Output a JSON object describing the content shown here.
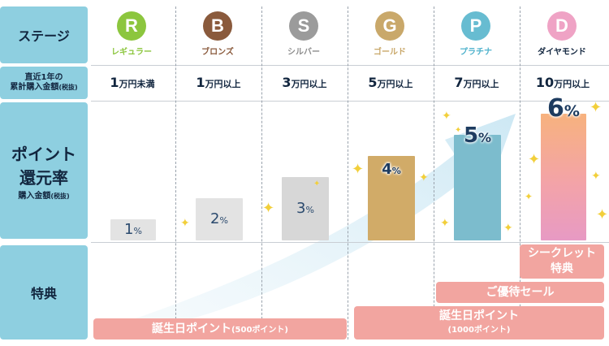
{
  "headers": {
    "stage": "ステージ",
    "amount_line1": "直近1年の",
    "amount_line2": "累計購入金額",
    "amount_paren": "(税抜)",
    "rate_line1": "ポイント",
    "rate_line2": "還元率",
    "rate_line3": "購入金額",
    "rate_paren": "(税抜)",
    "benefits": "特典"
  },
  "ranks": [
    {
      "letter": "R",
      "name": "レギュラー",
      "color": "#8cc63e",
      "name_color": "#8cc63e",
      "amount_num": "1",
      "amount_unit": "万円未満",
      "rate": 1,
      "rate_label": "1",
      "bar_color": "#e3e3e3"
    },
    {
      "letter": "B",
      "name": "ブロンズ",
      "color": "#8a5a3c",
      "name_color": "#8a5a3c",
      "amount_num": "1",
      "amount_unit": "万円以上",
      "rate": 2,
      "rate_label": "2",
      "bar_color": "#e3e3e3"
    },
    {
      "letter": "S",
      "name": "シルバー",
      "color": "#9b9b9b",
      "name_color": "#8c8c8c",
      "amount_num": "3",
      "amount_unit": "万円以上",
      "rate": 3,
      "rate_label": "3",
      "bar_color": "#d7d7d7"
    },
    {
      "letter": "G",
      "name": "ゴールド",
      "color": "#c9a86a",
      "name_color": "#c9a86a",
      "amount_num": "5",
      "amount_unit": "万円以上",
      "rate": 4,
      "rate_label": "4",
      "bar_color": "#d1ab68"
    },
    {
      "letter": "P",
      "name": "プラチナ",
      "color": "#67bcd1",
      "name_color": "#4fb2cc",
      "amount_num": "7",
      "amount_unit": "万円以上",
      "rate": 5,
      "rate_label": "5",
      "bar_color": "#7cbccd"
    },
    {
      "letter": "D",
      "name": "ダイヤモンド",
      "color": "#efa3c5",
      "name_color": "#12263f",
      "amount_num": "10",
      "amount_unit": "万円以上",
      "rate": 6,
      "rate_label": "6",
      "bar_color": "#f2a9b8"
    }
  ],
  "percent_sign": "%",
  "benefits": {
    "secret": "シークレット特典",
    "secret_line1": "シークレット",
    "secret_line2": "特典",
    "preferential_sale": "ご優待セール",
    "birthday_500": "誕生日ポイント",
    "birthday_500_paren": "(500ポイント)",
    "birthday_1000": "誕生日ポイント",
    "birthday_1000_paren": "(1000ポイント)"
  },
  "colors": {
    "header_bg": "#8ecfe0",
    "pill_bg": "#f2a5a0",
    "arrow": "#d9eef7",
    "sparkle": "#f2cf3a"
  }
}
